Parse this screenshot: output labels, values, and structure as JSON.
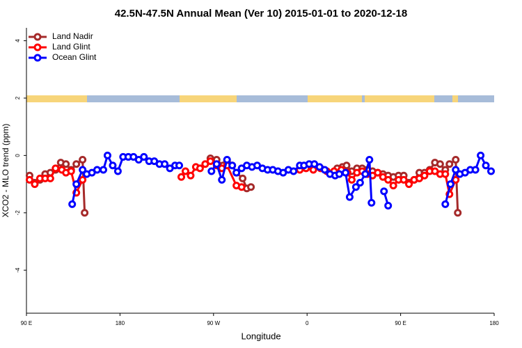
{
  "chart_data": {
    "type": "line",
    "title": "42.5N-47.5N Annual Mean (Ver 10)   2015-01-01 to 2020-12-18",
    "x_label": "Longitude",
    "y_label": "XCO2 - MLO trend (ppm)",
    "xlim": [
      90,
      540
    ],
    "ylim": [
      -5.5,
      4.45
    ],
    "xticks": [
      {
        "value": 90,
        "label": "90 E"
      },
      180,
      {
        "value": 270,
        "label": "90 W"
      },
      {
        "value": 360,
        "label": "0"
      },
      {
        "value": 450,
        "label": "90 E"
      },
      {
        "value": 540,
        "label": "180"
      }
    ],
    "yticks": [
      -4,
      -2,
      0,
      2,
      4
    ],
    "legend": "top-left",
    "series": [
      {
        "name": "Land Nadir",
        "color": "#a52a2a",
        "x": [
          93,
          98,
          103,
          108,
          113,
          118,
          123,
          128,
          133,
          138,
          144,
          146,
          null,
          267,
          273,
          279,
          283,
          288,
          292,
          298,
          302,
          306,
          null,
          389,
          394,
          398,
          403,
          408,
          413,
          418,
          423,
          428,
          433,
          438,
          443,
          448,
          453,
          458,
          463,
          468,
          473,
          478,
          483,
          488,
          493,
          497,
          503,
          505
        ],
        "values": [
          -0.7,
          -0.95,
          -0.85,
          -0.65,
          -0.6,
          -0.5,
          -0.25,
          -0.3,
          -0.5,
          -0.3,
          -0.15,
          -2.0,
          null,
          -0.1,
          -0.15,
          -0.35,
          -0.2,
          -0.35,
          -0.6,
          -0.8,
          -1.15,
          -1.1,
          null,
          -0.45,
          -0.4,
          -0.35,
          -0.55,
          -0.45,
          -0.45,
          -0.5,
          -0.55,
          -0.6,
          -0.65,
          -0.7,
          -0.75,
          -0.7,
          -0.7,
          -0.95,
          -0.85,
          -0.6,
          -0.6,
          -0.5,
          -0.25,
          -0.3,
          -0.5,
          -0.3,
          -0.15,
          -2.0
        ]
      },
      {
        "name": "Land Glint",
        "color": "#ff0000",
        "x": [
          93,
          98,
          103,
          108,
          113,
          118,
          124,
          128,
          133,
          138,
          144,
          null,
          239,
          243,
          248,
          253,
          257,
          262,
          267,
          273,
          278,
          283,
          292,
          297,
          null,
          353,
          359,
          366,
          373,
          379,
          386,
          393,
          399,
          403,
          408,
          413,
          418,
          423,
          428,
          433,
          438,
          443,
          448,
          453,
          458,
          463,
          468,
          473,
          478,
          483,
          488,
          493,
          497,
          503
        ],
        "values": [
          -0.85,
          -1.0,
          -0.8,
          -0.8,
          -0.8,
          -0.45,
          -0.5,
          -0.6,
          -0.55,
          -1.3,
          -0.85,
          null,
          -0.75,
          -0.55,
          -0.7,
          -0.4,
          -0.45,
          -0.3,
          -0.2,
          -0.35,
          -0.45,
          -0.35,
          -1.05,
          -1.1,
          null,
          -0.5,
          -0.45,
          -0.5,
          -0.45,
          -0.55,
          -0.55,
          -0.5,
          -0.6,
          -0.85,
          -0.6,
          -0.55,
          -0.65,
          -0.7,
          -0.6,
          -0.75,
          -0.85,
          -1.05,
          -0.85,
          -0.85,
          -1.0,
          -0.85,
          -0.8,
          -0.7,
          -0.55,
          -0.55,
          -0.65,
          -0.65,
          -1.35,
          -0.85
        ]
      },
      {
        "name": "Ocean Glint",
        "color": "#0000ff",
        "x": [
          134,
          138,
          144,
          148,
          153,
          158,
          164,
          168,
          173,
          178,
          183,
          188,
          193,
          198,
          203,
          208,
          213,
          218,
          223,
          228,
          233,
          237,
          null,
          268,
          273,
          278,
          283,
          288,
          292,
          297,
          302,
          307,
          312,
          317,
          322,
          327,
          332,
          337,
          342,
          347,
          353,
          357,
          362,
          367,
          372,
          377,
          382,
          387,
          391,
          397,
          401,
          407,
          411,
          416,
          420,
          422,
          null,
          434,
          438,
          null,
          493,
          498,
          503,
          507,
          512,
          517,
          522,
          527,
          532,
          537
        ],
        "values": [
          -1.7,
          -1.0,
          -0.5,
          -0.65,
          -0.6,
          -0.5,
          -0.5,
          0.0,
          -0.35,
          -0.55,
          -0.05,
          -0.05,
          -0.05,
          -0.15,
          -0.05,
          -0.2,
          -0.2,
          -0.3,
          -0.3,
          -0.45,
          -0.35,
          -0.35,
          null,
          -0.55,
          -0.3,
          -0.85,
          -0.15,
          -0.35,
          -0.6,
          -0.45,
          -0.35,
          -0.4,
          -0.35,
          -0.45,
          -0.5,
          -0.5,
          -0.55,
          -0.6,
          -0.5,
          -0.55,
          -0.35,
          -0.35,
          -0.3,
          -0.3,
          -0.4,
          -0.5,
          -0.65,
          -0.7,
          -0.65,
          -0.6,
          -1.45,
          -1.1,
          -0.95,
          -0.65,
          -0.15,
          -1.65,
          null,
          -1.25,
          -1.75,
          null,
          -1.7,
          -1.0,
          -0.5,
          -0.65,
          -0.6,
          -0.5,
          -0.5,
          0.0,
          -0.35,
          -0.55
        ]
      }
    ]
  }
}
